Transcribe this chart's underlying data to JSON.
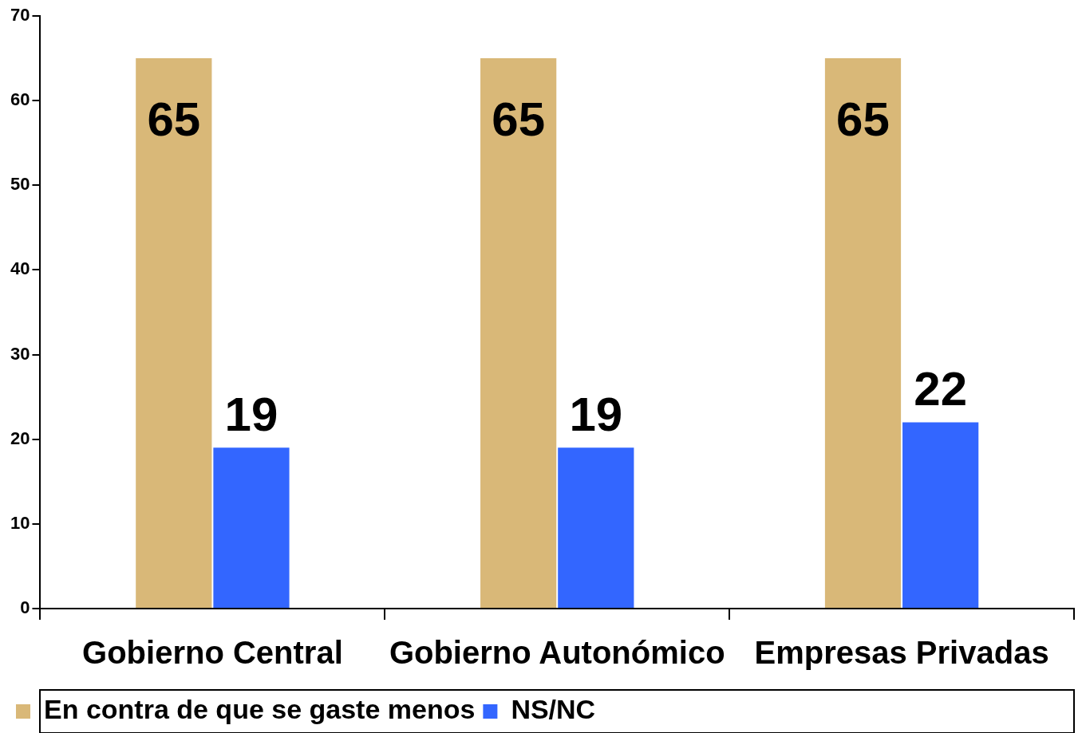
{
  "chart_data": {
    "type": "bar",
    "categories": [
      "Gobierno Central",
      "Gobierno Autonómico",
      "Empresas Privadas"
    ],
    "series": [
      {
        "name": "En contra de que se gaste menos",
        "color": "#d9b878",
        "values": [
          65,
          65,
          65
        ]
      },
      {
        "name": "NS/NC",
        "color": "#3366ff",
        "values": [
          19,
          19,
          22
        ]
      }
    ],
    "ylim": [
      0,
      70
    ],
    "yticks": [
      0,
      10,
      20,
      30,
      40,
      50,
      60,
      70
    ],
    "grid": false,
    "legend": "bottom left",
    "data_labels": true
  }
}
